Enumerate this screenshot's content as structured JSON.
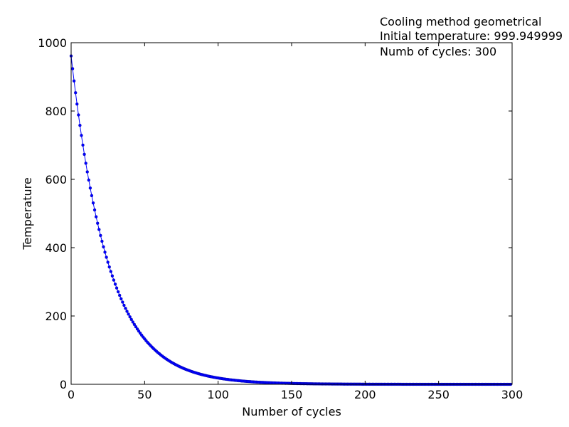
{
  "chart_data": {
    "type": "line",
    "xlabel": "Number of cycles",
    "ylabel": "Temperature",
    "xlim": [
      0,
      300
    ],
    "ylim": [
      0,
      1000
    ],
    "xticks": [
      "0",
      "50",
      "100",
      "150",
      "200",
      "250",
      "300"
    ],
    "yticks": [
      "0",
      "200",
      "400",
      "600",
      "800",
      "1000"
    ],
    "grid": false,
    "annotations": [
      "Cooling method geometrical",
      "Initial temperature: 999.949999",
      "Numb of cycles: 300"
    ],
    "series": [
      {
        "color": "#0000ff",
        "marker": "dot",
        "model": "geometric",
        "initial": 999.949999,
        "ratio": 0.9612,
        "x_start": 1,
        "x_end": 300
      }
    ]
  }
}
